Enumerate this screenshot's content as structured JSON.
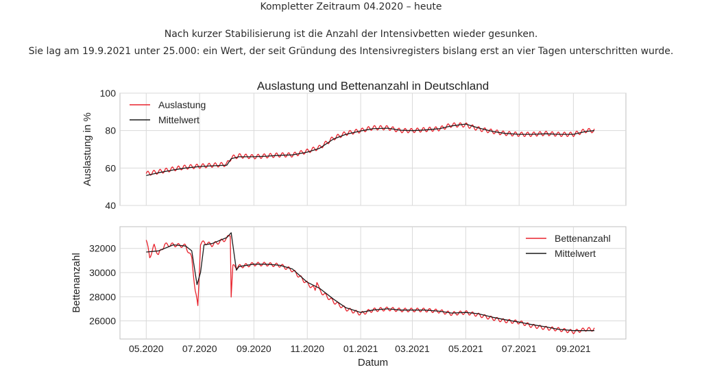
{
  "header": {
    "period": "Kompletter Zeitraum 04.2020 – heute",
    "desc_line1": "Nach kurzer Stabilisierung ist die Anzahl der Intensivbetten wieder gesunken.",
    "desc_line2": "Sie lag am 19.9.2021 unter 25.000: ein Wert, der seit Gründung des Intensivregisters bislang erst an vier Tagen unterschritten wurde."
  },
  "colors": {
    "raw": "#e8212b",
    "mean": "#1a1a1a",
    "grid": "#d9d9d9",
    "frame": "#bfbfbf"
  },
  "chart_data": [
    {
      "type": "line",
      "title": "Auslastung und Bettenanzahl in Deutschland",
      "xlabel": "",
      "ylabel": "Auslastung in %",
      "ylim": [
        40,
        100
      ],
      "yticks": [
        "40",
        "60",
        "80",
        "100"
      ],
      "xlim": [
        "2020-04-01",
        "2021-10-31"
      ],
      "grid": true,
      "legend_position": "top-left",
      "series": [
        {
          "name": "Auslastung",
          "x": [
            "2020-05-01",
            "2020-05-15",
            "2020-06-01",
            "2020-06-15",
            "2020-07-01",
            "2020-07-15",
            "2020-08-01",
            "2020-08-06",
            "2020-08-15",
            "2020-09-01",
            "2020-09-15",
            "2020-10-01",
            "2020-10-15",
            "2020-11-01",
            "2020-11-15",
            "2020-12-01",
            "2020-12-15",
            "2021-01-01",
            "2021-01-15",
            "2021-02-01",
            "2021-02-15",
            "2021-03-01",
            "2021-03-15",
            "2021-04-01",
            "2021-04-15",
            "2021-05-01",
            "2021-05-15",
            "2021-06-01",
            "2021-06-15",
            "2021-07-01",
            "2021-07-15",
            "2021-08-01",
            "2021-08-15",
            "2021-09-01",
            "2021-09-15",
            "2021-09-25"
          ],
          "values": [
            57,
            58,
            59.5,
            60.5,
            61,
            61.5,
            62,
            65.5,
            66.5,
            66,
            66.5,
            67,
            67,
            69,
            71,
            76,
            78.5,
            80,
            81.5,
            81.5,
            80,
            80,
            80.5,
            81,
            83,
            83,
            81,
            79.5,
            78.5,
            78,
            78,
            78.5,
            78,
            78,
            80,
            80
          ],
          "noise_amplitude": 1.2
        },
        {
          "name": "Mittelwert",
          "x": [
            "2020-05-01",
            "2020-05-15",
            "2020-06-01",
            "2020-06-15",
            "2020-07-01",
            "2020-07-15",
            "2020-08-01",
            "2020-08-06",
            "2020-08-15",
            "2020-09-01",
            "2020-09-15",
            "2020-10-01",
            "2020-10-15",
            "2020-11-01",
            "2020-11-15",
            "2020-12-01",
            "2020-12-15",
            "2021-01-01",
            "2021-01-15",
            "2021-02-01",
            "2021-02-15",
            "2021-03-01",
            "2021-03-15",
            "2021-04-01",
            "2021-04-15",
            "2021-05-01",
            "2021-05-15",
            "2021-06-01",
            "2021-06-15",
            "2021-07-01",
            "2021-07-15",
            "2021-08-01",
            "2021-08-15",
            "2021-09-01",
            "2021-09-15",
            "2021-09-25"
          ],
          "values": [
            56,
            57.5,
            59,
            60,
            60.8,
            61.2,
            61.5,
            65,
            66,
            66,
            66.3,
            66.8,
            67,
            68.5,
            70.5,
            75.5,
            78,
            79.8,
            81,
            81.3,
            80.2,
            80,
            80.3,
            81,
            82.5,
            83.5,
            81.5,
            79.5,
            78.5,
            78,
            78,
            78.3,
            78,
            78,
            79.5,
            80
          ]
        }
      ]
    },
    {
      "type": "line",
      "title": "",
      "xlabel": "Datum",
      "ylabel": "Bettenanzahl",
      "ylim": [
        24500,
        33800
      ],
      "yticks": [
        "26000",
        "28000",
        "30000",
        "32000"
      ],
      "xlim": [
        "2020-04-01",
        "2021-10-31"
      ],
      "xticks": [
        "05.2020",
        "07.2020",
        "09.2020",
        "11.2020",
        "01.2021",
        "03.2021",
        "05.2021",
        "07.2021",
        "09.2021"
      ],
      "grid": true,
      "legend_position": "top-right",
      "series": [
        {
          "name": "Bettenanzahl",
          "x": [
            "2020-05-01",
            "2020-05-05",
            "2020-05-10",
            "2020-05-15",
            "2020-05-22",
            "2020-06-01",
            "2020-06-15",
            "2020-06-22",
            "2020-06-26",
            "2020-06-29",
            "2020-07-02",
            "2020-07-06",
            "2020-07-15",
            "2020-08-01",
            "2020-08-05",
            "2020-08-06",
            "2020-08-08",
            "2020-08-15",
            "2020-09-01",
            "2020-09-15",
            "2020-10-01",
            "2020-10-15",
            "2020-11-01",
            "2020-11-10",
            "2020-11-12",
            "2020-11-15",
            "2020-12-01",
            "2020-12-15",
            "2021-01-01",
            "2021-01-15",
            "2021-02-01",
            "2021-02-15",
            "2021-03-01",
            "2021-03-15",
            "2021-04-01",
            "2021-04-15",
            "2021-05-01",
            "2021-05-15",
            "2021-06-01",
            "2021-06-15",
            "2021-07-01",
            "2021-07-15",
            "2021-08-01",
            "2021-08-15",
            "2021-09-01",
            "2021-09-15",
            "2021-09-25"
          ],
          "values": [
            32700,
            31300,
            32200,
            31500,
            32300,
            32300,
            32200,
            31200,
            28500,
            27200,
            32400,
            32500,
            32300,
            32800,
            33200,
            28100,
            30500,
            30500,
            30700,
            30700,
            30600,
            30200,
            29100,
            28600,
            29300,
            28500,
            27600,
            27000,
            26600,
            26900,
            27000,
            26900,
            26900,
            26900,
            26800,
            26600,
            26700,
            26500,
            26200,
            26000,
            25900,
            25600,
            25400,
            25300,
            25100,
            25300,
            25300
          ],
          "noise_amplitude": 160
        },
        {
          "name": "Mittelwert",
          "x": [
            "2020-05-01",
            "2020-05-15",
            "2020-06-01",
            "2020-06-15",
            "2020-06-22",
            "2020-06-28",
            "2020-07-02",
            "2020-07-06",
            "2020-07-15",
            "2020-08-01",
            "2020-08-06",
            "2020-08-12",
            "2020-08-15",
            "2020-09-01",
            "2020-09-15",
            "2020-10-01",
            "2020-10-15",
            "2020-11-01",
            "2020-11-15",
            "2020-12-01",
            "2020-12-15",
            "2021-01-01",
            "2021-01-15",
            "2021-02-01",
            "2021-02-15",
            "2021-03-01",
            "2021-03-15",
            "2021-04-01",
            "2021-04-15",
            "2021-05-01",
            "2021-05-15",
            "2021-06-01",
            "2021-06-15",
            "2021-07-01",
            "2021-07-15",
            "2021-08-01",
            "2021-08-15",
            "2021-09-01",
            "2021-09-15",
            "2021-09-25"
          ],
          "values": [
            31700,
            31800,
            32300,
            32200,
            31800,
            29000,
            30000,
            32300,
            32400,
            32900,
            33300,
            30200,
            30500,
            30700,
            30700,
            30600,
            30300,
            29200,
            28700,
            27800,
            27100,
            26700,
            26900,
            27000,
            26900,
            26900,
            26900,
            26800,
            26650,
            26700,
            26600,
            26300,
            26100,
            25900,
            25700,
            25500,
            25300,
            25200,
            25200,
            25200
          ]
        }
      ]
    }
  ]
}
